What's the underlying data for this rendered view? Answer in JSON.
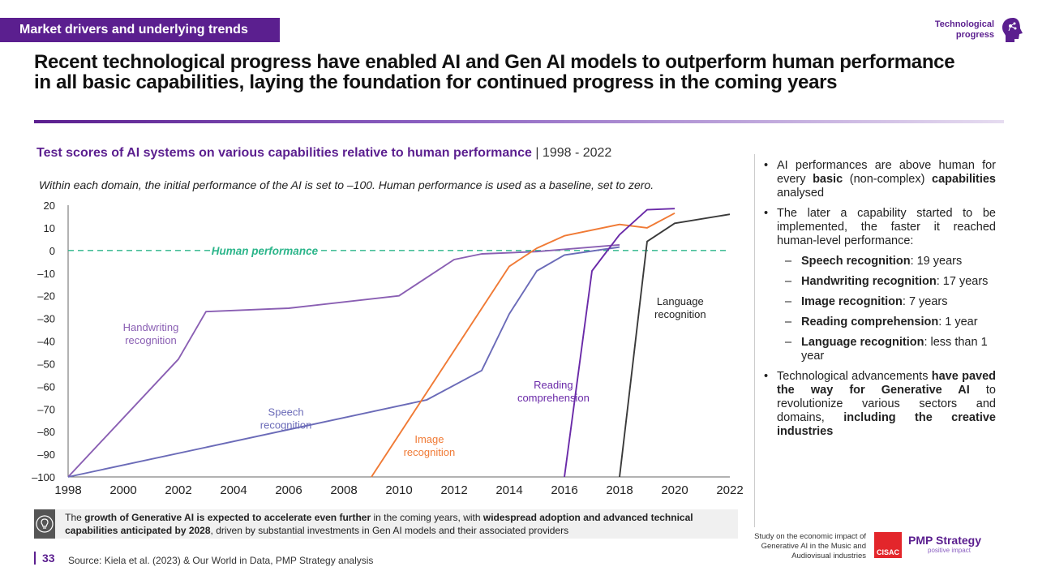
{
  "header": {
    "tag": "Market drivers and underlying trends",
    "topic_line1": "Technological",
    "topic_line2": "progress",
    "headline": "Recent technological progress have enabled AI and Gen AI models to outperform human performance in all basic capabilities, laying the foundation for continued progress in the coming years"
  },
  "chart_title": "Test scores of AI systems on various capabilities relative to human performance",
  "chart_period": " | 1998 - 2022",
  "chart_note": "Within each domain, the initial performance of the AI is set to –100. Human performance is used as a baseline, set to zero.",
  "chart_data": {
    "type": "line",
    "title": "Test scores of AI systems on various capabilities relative to human performance",
    "xlim": [
      1998,
      2022
    ],
    "ylim": [
      -100,
      20
    ],
    "x_ticks": [
      "1998",
      "2000",
      "2002",
      "2004",
      "2006",
      "2008",
      "2010",
      "2012",
      "2014",
      "2016",
      "2018",
      "2020",
      "2022"
    ],
    "y_ticks": [
      "20",
      "10",
      "0",
      "–10",
      "–20",
      "–30",
      "–40",
      "–50",
      "–60",
      "–70",
      "–80",
      "–90",
      "–100"
    ],
    "baseline_label": "Human performance",
    "series": [
      {
        "name": "Handwriting recognition",
        "label": [
          "Handwriting",
          "recognition"
        ],
        "color": "#8a5fb3",
        "points": [
          [
            1998,
            -100
          ],
          [
            2002,
            -48
          ],
          [
            2003,
            -27
          ],
          [
            2006,
            -25.5
          ],
          [
            2010,
            -20
          ],
          [
            2012,
            -4
          ],
          [
            2013,
            -1.5
          ],
          [
            2015,
            -0.5
          ],
          [
            2018,
            2.5
          ]
        ]
      },
      {
        "name": "Speech recognition",
        "label": [
          "Speech",
          "recognition"
        ],
        "color": "#6b6bb8",
        "points": [
          [
            1998,
            -100
          ],
          [
            2011,
            -66
          ],
          [
            2013,
            -53
          ],
          [
            2014,
            -28
          ],
          [
            2015,
            -9
          ],
          [
            2016,
            -2
          ],
          [
            2018,
            1.5
          ]
        ]
      },
      {
        "name": "Image recognition",
        "label": [
          "Image",
          "recognition"
        ],
        "color": "#f07a35",
        "points": [
          [
            2009,
            -100
          ],
          [
            2014,
            -7
          ],
          [
            2015,
            1
          ],
          [
            2016,
            6.5
          ],
          [
            2018,
            11.5
          ],
          [
            2019,
            10
          ],
          [
            2020,
            16.5
          ]
        ]
      },
      {
        "name": "Reading comprehension",
        "label": [
          "Reading",
          "comprehension"
        ],
        "color": "#6a2aa8",
        "points": [
          [
            2016,
            -100
          ],
          [
            2017,
            -9
          ],
          [
            2018,
            7
          ],
          [
            2019,
            18
          ],
          [
            2020,
            18.5
          ]
        ]
      },
      {
        "name": "Language recognition",
        "label": [
          "Language",
          "recognition"
        ],
        "color": "#3a3a3a",
        "points": [
          [
            2018,
            -100
          ],
          [
            2019,
            4
          ],
          [
            2020,
            12
          ],
          [
            2022,
            16
          ]
        ]
      }
    ]
  },
  "bullets": {
    "b1": {
      "t1": "AI performances are above human for every ",
      "b1": "basic",
      "t2": " (non-complex) ",
      "b2": "capabilities",
      "t3": " analysed"
    },
    "b2": "The later a capability started to be implemented, the faster it reached human-level performance:",
    "subs": [
      {
        "name": "Speech recognition",
        "value": ": 19 years"
      },
      {
        "name": "Handwriting recognition",
        "value": ": 17 years"
      },
      {
        "name": "Image recognition",
        "value": ": 7 years"
      },
      {
        "name": "Reading comprehension",
        "value": ": 1 year"
      },
      {
        "name": "Language recognition",
        "value": ": less than 1 year"
      }
    ],
    "b3": {
      "t1": "Technological advancements ",
      "b1": "have paved the way for Generative AI",
      "t2": " to revolutionize various sectors and domains, ",
      "b2": "including the creative industries"
    }
  },
  "callout": {
    "p1": "The ",
    "b1": "growth of Generative AI is expected to accelerate even further",
    "p2": " in the coming years, with ",
    "b2": "widespread adoption and advanced technical capabilities anticipated by 2028",
    "p3": ", driven by substantial investments in Gen AI models and their associated providers"
  },
  "footer": {
    "page": "33",
    "source": "Source:  Kiela et al. (2023) & Our World in Data, PMP Strategy analysis",
    "study": "Study on the economic impact of Generative AI in the Music and Audiovisual industries",
    "cisac": "CISAC",
    "pmp_name": "PMP Strategy",
    "pmp_tag": "positive impact"
  },
  "colors": {
    "brand": "#5b1f8f",
    "baseline": "#2bb58a"
  }
}
